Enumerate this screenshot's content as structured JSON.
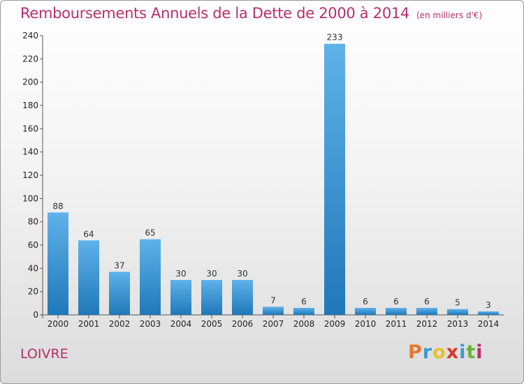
{
  "title": "Remboursements Annuels de la Dette de 2000 à 2014",
  "unit": "(en milliers d'€)",
  "place": "LOIVRE",
  "logo": {
    "text": "Proxiti",
    "colors": [
      "#e8762b",
      "#3a9ad9",
      "#e8c02b",
      "#d9362b",
      "#3a9ad9",
      "#68b33c",
      "#b5306a"
    ]
  },
  "colors": {
    "bar_top": "#5fb2ea",
    "bar_bottom": "#1f78b8",
    "title": "#b5306a"
  },
  "chart_data": {
    "type": "bar",
    "categories": [
      "2000",
      "2001",
      "2002",
      "2003",
      "2004",
      "2005",
      "2006",
      "2007",
      "2008",
      "2009",
      "2010",
      "2011",
      "2012",
      "2013",
      "2014"
    ],
    "values": [
      88,
      64,
      37,
      65,
      30,
      30,
      30,
      7,
      6,
      233,
      6,
      6,
      6,
      5,
      3
    ],
    "ylim": [
      0,
      240
    ],
    "yticks": [
      0,
      20,
      40,
      60,
      80,
      100,
      120,
      140,
      160,
      180,
      200,
      220,
      240
    ],
    "grid": false,
    "legend": "none"
  }
}
